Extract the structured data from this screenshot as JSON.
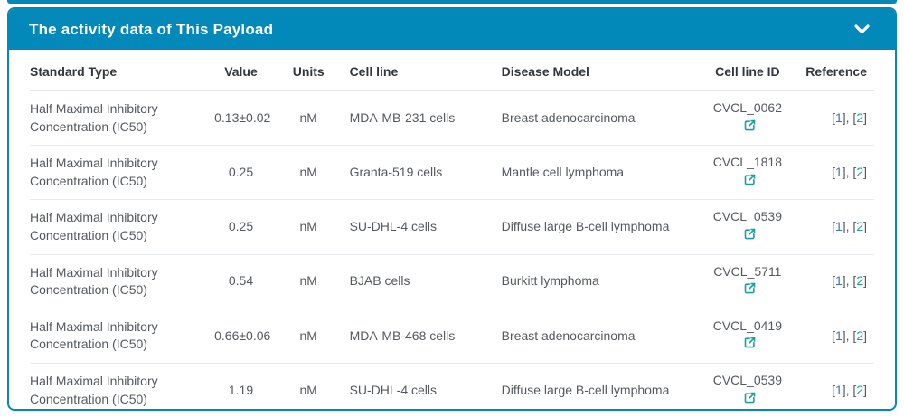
{
  "panel": {
    "title": "The activity data of This Payload"
  },
  "colors": {
    "accent": "#0289BA",
    "link_blue": "#3B6FD4",
    "link_teal": "#18A1A4",
    "header_text": "#33373b",
    "body_text": "#55595e",
    "divider": "#e6eaec"
  },
  "icons": {
    "collapse": "chevron-down-icon",
    "external": "external-link-icon"
  },
  "table": {
    "columns": [
      {
        "label": "Standard Type",
        "align": "left"
      },
      {
        "label": "Value",
        "align": "center"
      },
      {
        "label": "Units",
        "align": "center"
      },
      {
        "label": "Cell line",
        "align": "left"
      },
      {
        "label": "Disease Model",
        "align": "left"
      },
      {
        "label": "Cell line ID",
        "align": "center"
      },
      {
        "label": "Reference",
        "align": "right"
      }
    ],
    "rows": [
      {
        "standard_type": "Half Maximal Inhibitory Concentration (IC50)",
        "value": "0.13±0.02",
        "units": "nM",
        "cell_line": "MDA-MB-231 cells",
        "disease_model": "Breast adenocarcinoma",
        "cell_line_id": "CVCL_0062",
        "references": [
          "1",
          "2"
        ]
      },
      {
        "standard_type": "Half Maximal Inhibitory Concentration (IC50)",
        "value": "0.25",
        "units": "nM",
        "cell_line": "Granta-519 cells",
        "disease_model": "Mantle cell lymphoma",
        "cell_line_id": "CVCL_1818",
        "references": [
          "1",
          "2"
        ]
      },
      {
        "standard_type": "Half Maximal Inhibitory Concentration (IC50)",
        "value": "0.25",
        "units": "nM",
        "cell_line": "SU-DHL-4 cells",
        "disease_model": "Diffuse large B-cell lymphoma",
        "cell_line_id": "CVCL_0539",
        "references": [
          "1",
          "2"
        ]
      },
      {
        "standard_type": "Half Maximal Inhibitory Concentration (IC50)",
        "value": "0.54",
        "units": "nM",
        "cell_line": "BJAB cells",
        "disease_model": "Burkitt lymphoma",
        "cell_line_id": "CVCL_5711",
        "references": [
          "1",
          "2"
        ]
      },
      {
        "standard_type": "Half Maximal Inhibitory Concentration (IC50)",
        "value": "0.66±0.06",
        "units": "nM",
        "cell_line": "MDA-MB-468 cells",
        "disease_model": "Breast adenocarcinoma",
        "cell_line_id": "CVCL_0419",
        "references": [
          "1",
          "2"
        ]
      },
      {
        "standard_type": "Half Maximal Inhibitory Concentration (IC50)",
        "value": "1.19",
        "units": "nM",
        "cell_line": "SU-DHL-4 cells",
        "disease_model": "Diffuse large B-cell lymphoma",
        "cell_line_id": "CVCL_0539",
        "references": [
          "1",
          "2"
        ]
      }
    ]
  }
}
